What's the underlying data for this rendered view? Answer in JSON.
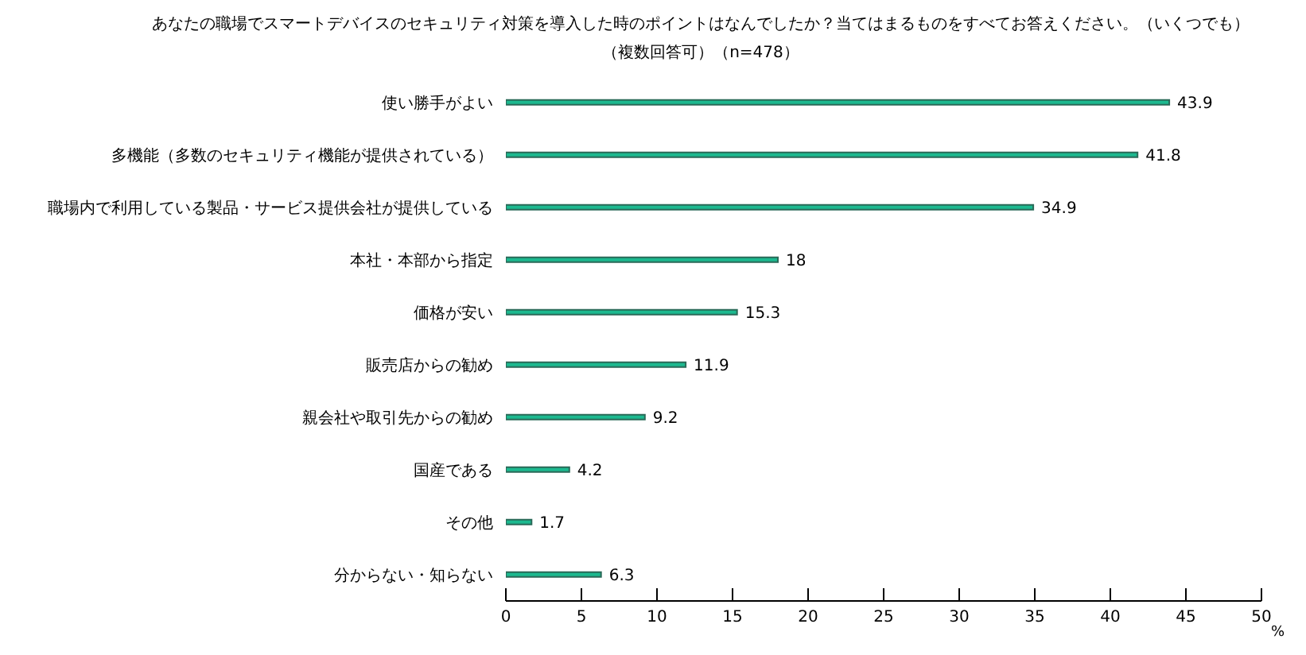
{
  "chart_data": {
    "type": "bar",
    "orientation": "horizontal",
    "title": "あなたの職場でスマートデバイスのセキュリティ対策を導入した時のポイントはなんでしたか？当てはまるものをすべてお答えください。（いくつでも）",
    "subtitle": "（複数回答可）（n=478）",
    "xlabel": "%",
    "categories": [
      "使い勝手がよい",
      "多機能（多数のセキュリティ機能が提供されている）",
      "職場内で利用している製品・サービス提供会社が提供している",
      "本社・本部から指定",
      "価格が安い",
      "販売店からの勧め",
      "親会社や取引先からの勧め",
      "国産である",
      "その他",
      "分からない・知らない"
    ],
    "values": [
      43.9,
      41.8,
      34.9,
      18,
      15.3,
      11.9,
      9.2,
      4.2,
      1.7,
      6.3
    ],
    "color": "#1cb98f",
    "xlim": [
      0,
      50
    ],
    "xticks": [
      0,
      5,
      10,
      15,
      20,
      25,
      30,
      35,
      40,
      45,
      50
    ],
    "grid": false,
    "data_labels": true
  }
}
